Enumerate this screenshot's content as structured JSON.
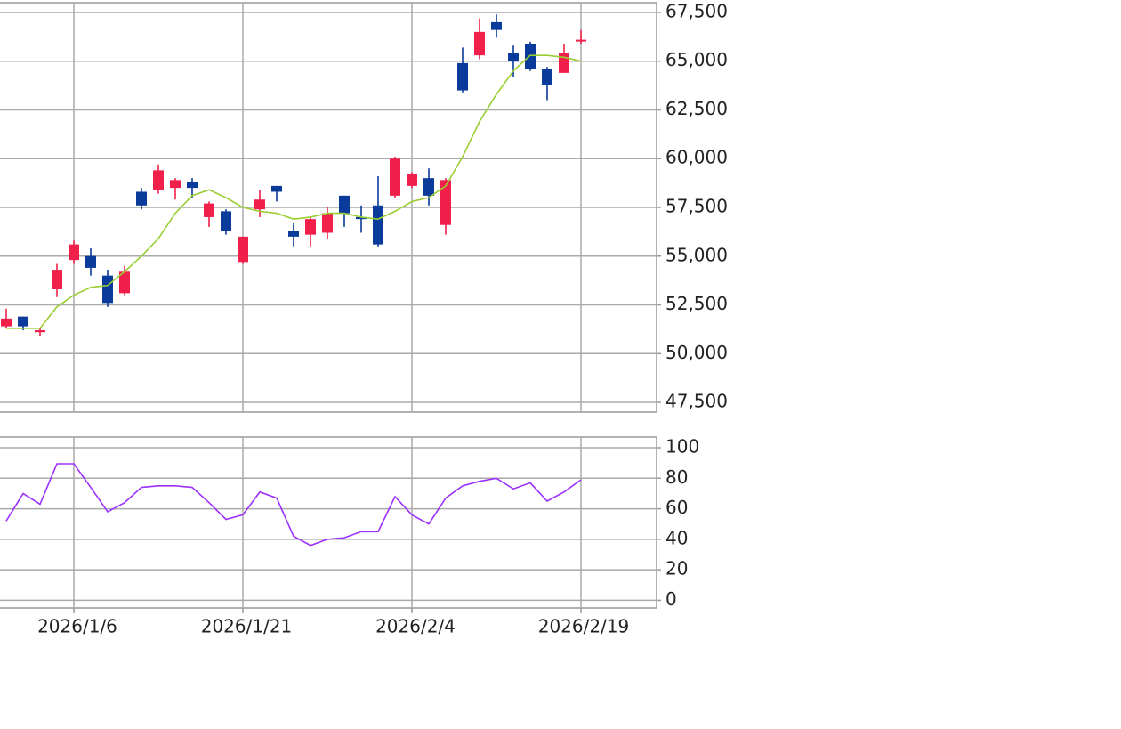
{
  "chart_data": [
    {
      "type": "candlestick",
      "open": [
        51400,
        51900,
        51100,
        53300,
        54800,
        55000,
        54000,
        53100,
        58300,
        58400,
        58500,
        58800,
        57000,
        57300,
        54700,
        57400,
        58600,
        56300,
        56100,
        56200,
        58100,
        57000,
        57600,
        58100,
        58600,
        59000,
        56600,
        64900,
        65300,
        67000,
        65400,
        65900,
        64600,
        64400,
        66100
      ],
      "high": [
        52300,
        51900,
        51300,
        54600,
        55800,
        55400,
        54300,
        54500,
        58500,
        59700,
        59000,
        59000,
        57800,
        57400,
        56000,
        58400,
        58600,
        56700,
        57000,
        57500,
        58100,
        57600,
        59100,
        60100,
        59300,
        59500,
        59000,
        65700,
        67200,
        67400,
        65800,
        66000,
        64700,
        65900,
        66600
      ],
      "low": [
        51300,
        51200,
        50900,
        52900,
        54600,
        54000,
        52400,
        53000,
        57400,
        58200,
        57900,
        58000,
        56500,
        56100,
        54600,
        57000,
        57800,
        55500,
        55500,
        55900,
        56500,
        56200,
        55500,
        58000,
        58500,
        57600,
        56100,
        63400,
        65100,
        66200,
        64200,
        64500,
        63000,
        64400,
        65900
      ],
      "close": [
        51800,
        51400,
        51200,
        54300,
        55600,
        54400,
        52600,
        54200,
        57600,
        59400,
        58900,
        58500,
        57700,
        56300,
        56000,
        57900,
        58300,
        56000,
        56900,
        57200,
        57200,
        56900,
        55600,
        60000,
        59200,
        58100,
        58900,
        63500,
        66500,
        66600,
        65000,
        64600,
        63800,
        65400,
        66100
      ],
      "up_color": "#f0204a",
      "down_color": "#0a3a9a",
      "moving_average": {
        "color": "#9acd32",
        "values": [
          51300,
          51300,
          51300,
          52400,
          53000,
          53400,
          53500,
          54200,
          55000,
          55900,
          57200,
          58100,
          58400,
          58000,
          57500,
          57300,
          57200,
          56900,
          57000,
          57200,
          57200,
          57000,
          56900,
          57300,
          57800,
          58000,
          58600,
          60100,
          61900,
          63300,
          64500,
          65300,
          65300,
          65200,
          65000
        ]
      },
      "ylim": [
        47000,
        68000
      ],
      "yticks": [
        {
          "value": 47500,
          "label": "47,500"
        },
        {
          "value": 50000,
          "label": "50,000"
        },
        {
          "value": 52500,
          "label": "52,500"
        },
        {
          "value": 55000,
          "label": "55,000"
        },
        {
          "value": 57500,
          "label": "57,500"
        },
        {
          "value": 60000,
          "label": "60,000"
        },
        {
          "value": 62500,
          "label": "62,500"
        },
        {
          "value": 65000,
          "label": "65,000"
        },
        {
          "value": 67500,
          "label": "67,500"
        }
      ],
      "grid": true
    },
    {
      "type": "line",
      "categories": [
        null,
        null,
        null,
        null,
        "2026/1/6",
        null,
        null,
        null,
        null,
        null,
        null,
        null,
        null,
        null,
        "2026/1/21",
        null,
        null,
        null,
        null,
        null,
        null,
        null,
        null,
        null,
        "2026/2/4",
        null,
        null,
        null,
        null,
        null,
        null,
        null,
        null,
        null,
        "2026/2/19"
      ],
      "series": [
        {
          "color": "#9b30ff",
          "values": [
            52,
            70,
            63,
            89.5,
            89.5,
            74,
            58,
            64,
            74,
            75,
            75,
            74,
            64,
            53,
            56,
            71,
            67,
            42,
            36,
            40,
            41,
            45,
            45,
            68,
            56,
            50,
            67,
            75,
            78,
            80,
            73,
            77,
            65,
            71,
            79
          ]
        }
      ],
      "ylim": [
        -5,
        107
      ],
      "yticks": [
        0,
        20,
        40,
        60,
        80,
        100
      ],
      "grid": true
    }
  ]
}
